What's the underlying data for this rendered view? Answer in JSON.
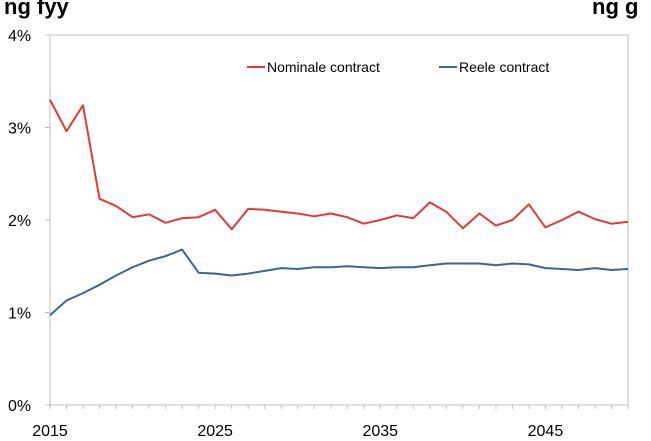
{
  "chart_data": {
    "type": "line",
    "title": "",
    "xlabel": "",
    "ylabel": "",
    "x": [
      2015,
      2016,
      2017,
      2018,
      2019,
      2020,
      2021,
      2022,
      2023,
      2024,
      2025,
      2026,
      2027,
      2028,
      2029,
      2030,
      2031,
      2032,
      2033,
      2034,
      2035,
      2036,
      2037,
      2038,
      2039,
      2040,
      2041,
      2042,
      2043,
      2044,
      2045,
      2046,
      2047,
      2048,
      2049,
      2050
    ],
    "xlim": [
      2015,
      2050
    ],
    "ylim": [
      0,
      4
    ],
    "x_ticks": [
      "2015",
      "2025",
      "2035",
      "2045"
    ],
    "y_ticks": [
      "0%",
      "1%",
      "2%",
      "3%",
      "4%"
    ],
    "grid": false,
    "legend_position": "top",
    "series": [
      {
        "name": "Nominale contract",
        "color": "#e03a3a",
        "values": [
          3.3,
          2.96,
          3.24,
          2.23,
          2.15,
          2.03,
          2.06,
          1.97,
          2.02,
          2.03,
          2.11,
          1.9,
          2.12,
          2.11,
          2.09,
          2.07,
          2.04,
          2.07,
          2.03,
          1.96,
          2.0,
          2.05,
          2.02,
          2.19,
          2.09,
          1.91,
          2.07,
          1.94,
          2.0,
          2.17,
          1.92,
          2.0,
          2.09,
          2.01,
          1.96,
          1.98
        ]
      },
      {
        "name": "Reele contract",
        "color": "#3b6690",
        "values": [
          0.97,
          1.13,
          1.21,
          1.3,
          1.4,
          1.49,
          1.56,
          1.61,
          1.68,
          1.43,
          1.42,
          1.4,
          1.42,
          1.45,
          1.48,
          1.47,
          1.49,
          1.49,
          1.5,
          1.49,
          1.48,
          1.49,
          1.49,
          1.51,
          1.53,
          1.53,
          1.53,
          1.51,
          1.53,
          1.52,
          1.48,
          1.47,
          1.46,
          1.48,
          1.46,
          1.47
        ]
      }
    ]
  },
  "cropped_header_text": "ng fyy                                  ng g"
}
